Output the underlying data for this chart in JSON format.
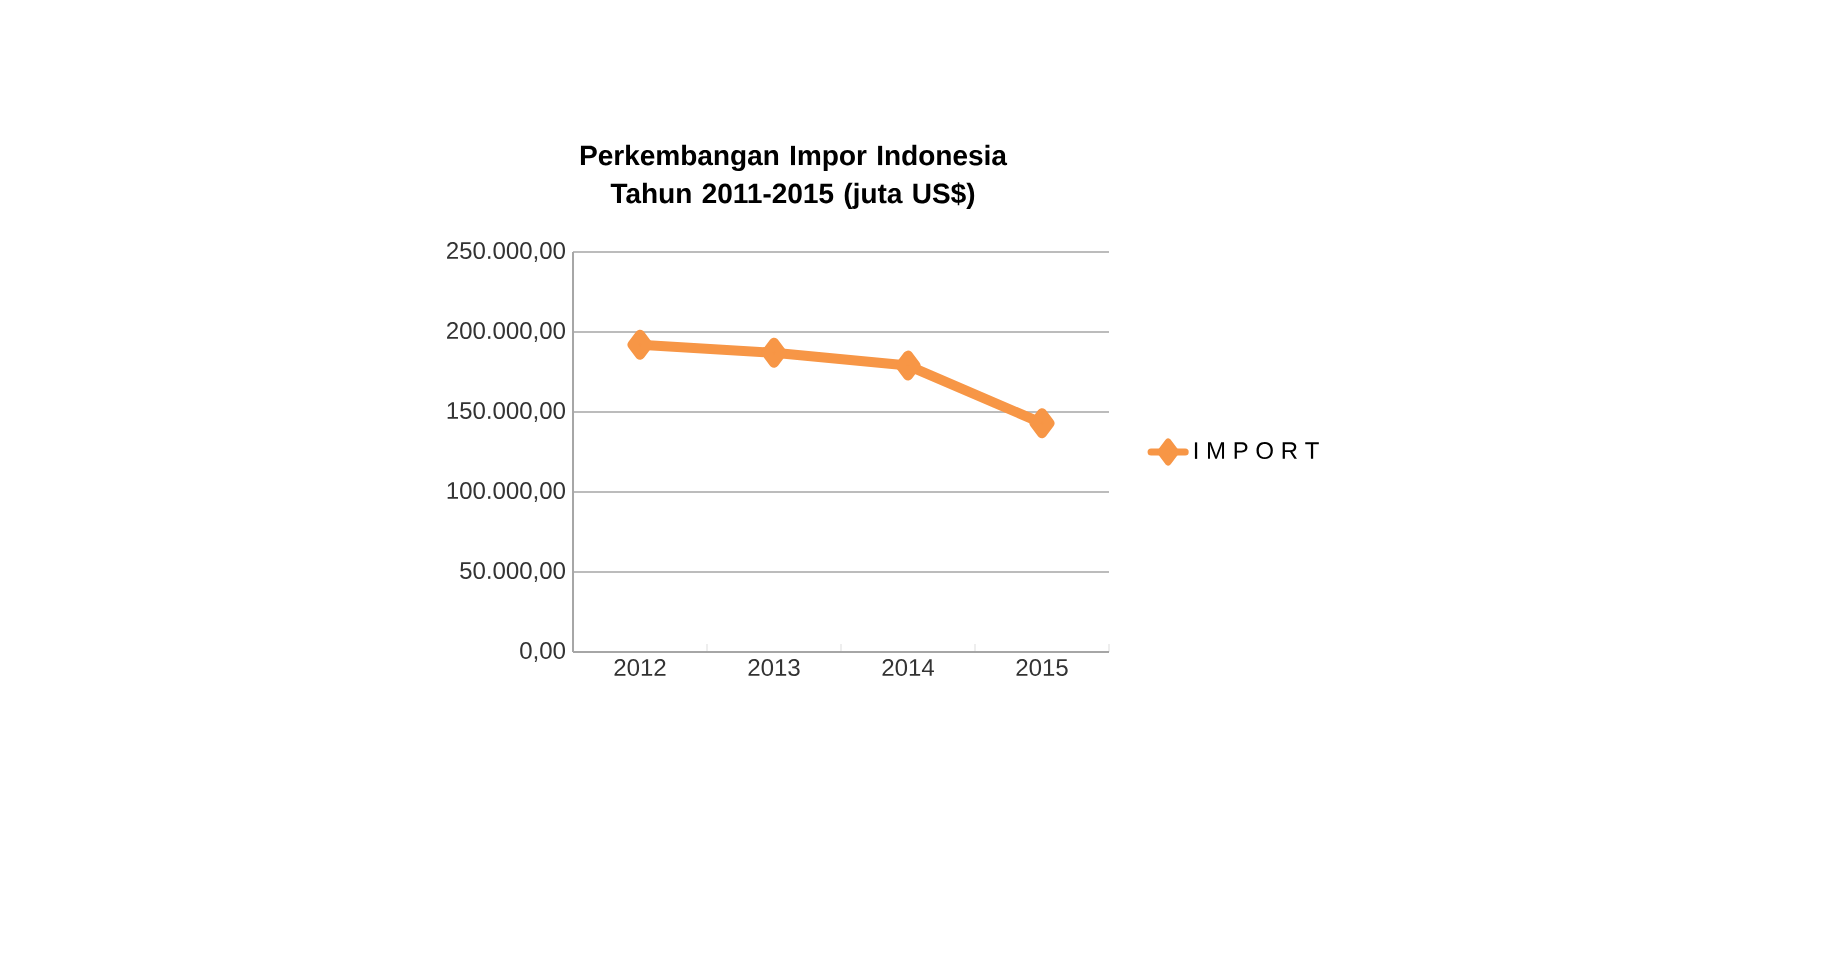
{
  "chart_data": {
    "type": "line",
    "title": "Perkembangan Impor Indonesia Tahun 2011-2015  (juta US$)",
    "categories": [
      "2012",
      "2013",
      "2014",
      "2015"
    ],
    "series": [
      {
        "name": "I M P O R T",
        "color": "#f79646",
        "values": [
          192000,
          187000,
          179000,
          143000
        ]
      }
    ],
    "ylim": [
      0,
      250000
    ],
    "yticks": [
      {
        "value": 0,
        "label": "0,00"
      },
      {
        "value": 50000,
        "label": "50.000,00"
      },
      {
        "value": 100000,
        "label": "100.000,00"
      },
      {
        "value": 150000,
        "label": "150.000,00"
      },
      {
        "value": 200000,
        "label": "200.000,00"
      },
      {
        "value": 250000,
        "label": "250.000,00"
      }
    ],
    "grid": "y",
    "legend": "right",
    "marker": "diamond",
    "line_style": "solid"
  }
}
